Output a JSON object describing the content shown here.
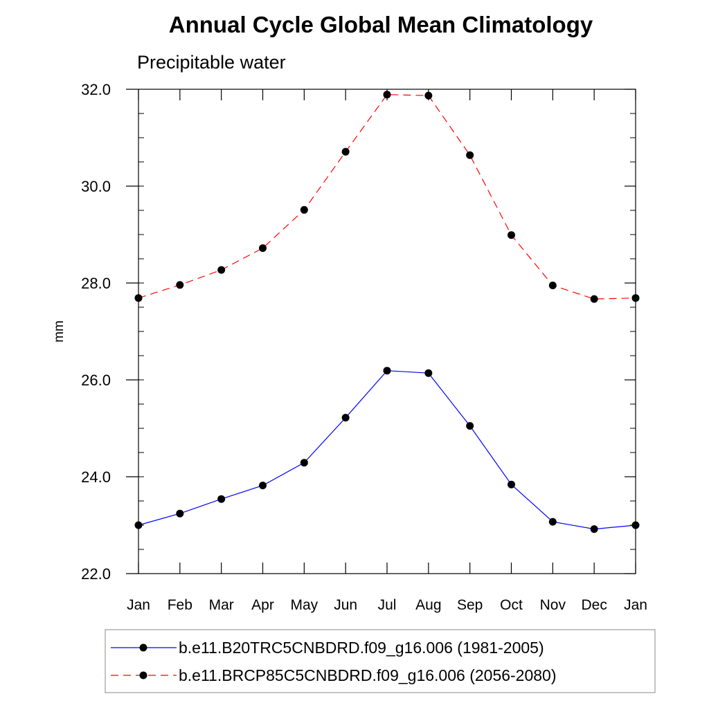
{
  "chart_data": {
    "type": "line",
    "title": "Annual Cycle Global Mean Climatology",
    "subtitle": "Precipitable water",
    "ylabel": "mm",
    "xlabel": "",
    "categories": [
      "Jan",
      "Feb",
      "Mar",
      "Apr",
      "May",
      "Jun",
      "Jul",
      "Aug",
      "Sep",
      "Oct",
      "Nov",
      "Dec",
      "Jan"
    ],
    "ylim": [
      22.0,
      32.0
    ],
    "yticks": [
      "22.0",
      "24.0",
      "26.0",
      "28.0",
      "30.0",
      "32.0"
    ],
    "grid": false,
    "legend_position": "bottom",
    "series": [
      {
        "name": "b.e11.B20TRC5CNBDRD.f09_g16.006 (1981-2005)",
        "color": "#0000ff",
        "dash": "solid",
        "values": [
          23.0,
          23.24,
          23.54,
          23.82,
          24.29,
          25.22,
          26.19,
          26.14,
          25.05,
          23.84,
          23.07,
          22.92,
          23.0
        ]
      },
      {
        "name": "b.e11.BRCP85C5CNBDRD.f09_g16.006 (2056-2080)",
        "color": "#ff0000",
        "dash": "dashed",
        "values": [
          27.69,
          27.96,
          28.27,
          28.72,
          29.51,
          30.71,
          31.89,
          31.87,
          30.64,
          28.99,
          27.95,
          27.67,
          27.69
        ]
      }
    ]
  }
}
